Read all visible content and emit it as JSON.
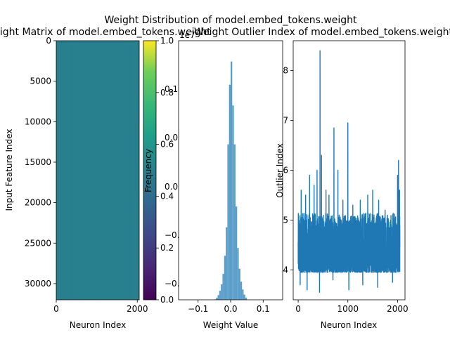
{
  "suptitle": "Weight Distribution of model.embed_tokens.weight",
  "chart_data": [
    {
      "type": "heatmap",
      "title": "Weight Matrix of model.embed_tokens.weight",
      "xlabel": "Neuron Index",
      "ylabel": "Input Feature Index",
      "xlim": [
        0,
        2048
      ],
      "ylim": [
        32000,
        0
      ],
      "xticks": [
        0,
        2000
      ],
      "yticks": [
        0,
        5000,
        10000,
        15000,
        20000,
        25000,
        30000
      ],
      "colormap": "viridis",
      "dominant_value": 0.0,
      "colorbar": {
        "ticks": [
          0.0,
          0.2,
          0.4,
          0.6,
          0.8,
          1.0
        ],
        "tick_labels": [
          "0.0",
          "0.2",
          "0.4",
          "0.6",
          "0.8",
          "1.0"
        ]
      }
    },
    {
      "type": "bar",
      "title": "",
      "xlabel": "Weight Value",
      "ylabel": "Frequency",
      "offset_text": "1e7",
      "xlim": [
        -0.16,
        0.16
      ],
      "ylim": [
        0,
        1.0
      ],
      "xticks": [
        -0.1,
        0.0,
        0.1
      ],
      "xtick_labels": [
        "−0.1",
        "0.0",
        "0.1"
      ],
      "overlay_tick_labels": [
        "0.1",
        "0.0",
        "0.0",
        "−0.",
        "−0."
      ],
      "bin_width": 0.005,
      "bins": [
        [
          -0.05,
          0.002
        ],
        [
          -0.045,
          0.008
        ],
        [
          -0.04,
          0.018
        ],
        [
          -0.035,
          0.035
        ],
        [
          -0.03,
          0.06
        ],
        [
          -0.025,
          0.1
        ],
        [
          -0.02,
          0.17
        ],
        [
          -0.015,
          0.28
        ],
        [
          -0.01,
          0.6
        ],
        [
          -0.005,
          0.83
        ],
        [
          0.0,
          0.92
        ],
        [
          0.005,
          0.75
        ],
        [
          0.01,
          0.6
        ],
        [
          0.015,
          0.36
        ],
        [
          0.02,
          0.2
        ],
        [
          0.025,
          0.12
        ],
        [
          0.03,
          0.07
        ],
        [
          0.035,
          0.04
        ],
        [
          0.04,
          0.02
        ],
        [
          0.045,
          0.008
        ]
      ]
    },
    {
      "type": "line",
      "title": "Weight Outlier Index of model.embed_tokens.weight",
      "xlabel": "Neuron Index",
      "ylabel": "Outlier Index",
      "xlim": [
        -100,
        2150
      ],
      "ylim": [
        3.4,
        8.6
      ],
      "xticks": [
        0,
        1000,
        2000
      ],
      "yticks": [
        4,
        5,
        6,
        7,
        8
      ],
      "series_color": "#1f77b4",
      "n_points": 2048,
      "baseline_range": [
        3.9,
        5.3
      ],
      "peaks": [
        {
          "x": 60,
          "y": 5.6
        },
        {
          "x": 150,
          "y": 5.5
        },
        {
          "x": 230,
          "y": 5.9
        },
        {
          "x": 320,
          "y": 5.7
        },
        {
          "x": 380,
          "y": 6.0
        },
        {
          "x": 440,
          "y": 8.4
        },
        {
          "x": 470,
          "y": 6.3
        },
        {
          "x": 560,
          "y": 5.6
        },
        {
          "x": 620,
          "y": 5.5
        },
        {
          "x": 720,
          "y": 6.85
        },
        {
          "x": 800,
          "y": 6.0
        },
        {
          "x": 900,
          "y": 5.4
        },
        {
          "x": 1000,
          "y": 6.95
        },
        {
          "x": 1100,
          "y": 5.3
        },
        {
          "x": 1250,
          "y": 5.4
        },
        {
          "x": 1400,
          "y": 5.5
        },
        {
          "x": 1500,
          "y": 5.6
        },
        {
          "x": 1620,
          "y": 5.4
        },
        {
          "x": 1750,
          "y": 5.2
        },
        {
          "x": 1900,
          "y": 5.5
        },
        {
          "x": 2000,
          "y": 5.9
        },
        {
          "x": 2020,
          "y": 6.2
        },
        {
          "x": 2040,
          "y": 5.6
        }
      ],
      "dips": [
        {
          "x": 40,
          "y": 3.7
        },
        {
          "x": 180,
          "y": 3.6
        },
        {
          "x": 430,
          "y": 3.55
        },
        {
          "x": 700,
          "y": 3.8
        },
        {
          "x": 1020,
          "y": 3.6
        },
        {
          "x": 1300,
          "y": 3.7
        },
        {
          "x": 1600,
          "y": 3.65
        },
        {
          "x": 1900,
          "y": 3.75
        }
      ]
    }
  ]
}
